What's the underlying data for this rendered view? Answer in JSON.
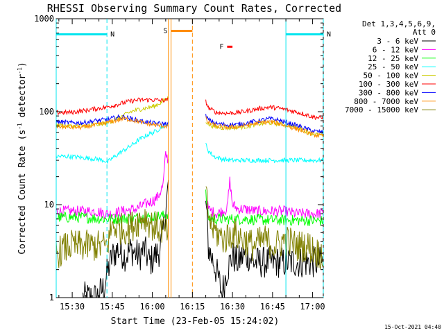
{
  "chart_data": {
    "type": "line",
    "title": "RHESSI Observing Summary Count Rates, Corrected",
    "xlabel": "Start Time (23-Feb-05 15:24:02)",
    "ylabel": "Corrected Count Rate (s",
    "ylabel_sup": "-1",
    "ylabel_mid": " detector",
    "ylabel_sup2": "-1",
    "ylabel_end": ")",
    "ylog": true,
    "ylim": [
      1,
      1000
    ],
    "xlim_minutes": [
      0,
      100
    ],
    "x_tick_labels": [
      "15:30",
      "15:45",
      "16:00",
      "16:15",
      "16:30",
      "16:45",
      "17:00"
    ],
    "x_tick_minutes": [
      6,
      21,
      36,
      51,
      66,
      81,
      96
    ],
    "y_tick_labels": [
      "1",
      "10",
      "100",
      "1000"
    ],
    "y_tick_values": [
      1,
      10,
      100,
      1000
    ],
    "legend_placement": "right",
    "legend_header": [
      "Det 1,3,4,5,6,9,",
      "Att 0"
    ],
    "timestamp": "15-Oct-2021 04:40",
    "gap_minutes": [
      42,
      56
    ],
    "markers": [
      {
        "label": "N",
        "color": "#00e5ee",
        "start": 0,
        "end": 19,
        "level": 680
      },
      {
        "label": "N",
        "color": "#00e5ee",
        "start": 86,
        "end": 100,
        "level": 680
      },
      {
        "label": "S",
        "color": "#ff8c00",
        "start": 43,
        "end": 51,
        "level": 740
      },
      {
        "label": "F",
        "color": "#ff0000",
        "start": 64,
        "end": 66,
        "level": 500
      }
    ],
    "vlines": [
      {
        "minute": 0,
        "color": "#00e5ee",
        "style": "solid"
      },
      {
        "minute": 19,
        "color": "#00e5ee",
        "style": "dashed"
      },
      {
        "minute": 86,
        "color": "#00e5ee",
        "style": "solid"
      },
      {
        "minute": 100,
        "color": "#00e5ee",
        "style": "dashed"
      },
      {
        "minute": 42,
        "color": "#ff8c00",
        "style": "solid"
      },
      {
        "minute": 43,
        "color": "#ff8c00",
        "style": "solid"
      },
      {
        "minute": 51,
        "color": "#ff8c00",
        "style": "dashed"
      }
    ],
    "series": [
      {
        "name": "3 - 6 keV",
        "color": "#000000",
        "x": [
          10,
          12,
          15,
          18,
          19,
          21,
          23,
          26,
          28,
          31,
          33,
          35,
          37,
          39,
          40,
          41,
          42,
          56,
          57,
          58,
          59,
          61,
          62,
          64,
          66,
          68,
          70,
          72,
          74,
          77,
          80,
          84,
          88,
          92,
          96,
          100
        ],
        "y": [
          1,
          1,
          1,
          1.3,
          1.8,
          2.8,
          3.3,
          2.8,
          3.3,
          2.8,
          3.3,
          2.4,
          2.8,
          3.3,
          5,
          9,
          16,
          11,
          3.5,
          2.8,
          2.4,
          1.5,
          1.1,
          2,
          2.8,
          2.4,
          2.8,
          2.8,
          2.4,
          2.4,
          2.4,
          2.4,
          2.4,
          2.4,
          2.4,
          2.4
        ]
      },
      {
        "name": "6 - 12 keV",
        "color": "#ff00ff",
        "x": [
          0,
          5,
          10,
          15,
          19,
          21,
          25,
          30,
          33,
          36,
          38,
          40,
          41,
          42,
          56,
          57,
          58,
          60,
          62,
          64,
          65,
          66,
          68,
          70,
          75,
          80,
          85,
          90,
          95,
          100
        ],
        "y": [
          8.5,
          8.5,
          8.5,
          8.5,
          8,
          8,
          8.5,
          9,
          10,
          11,
          12,
          16,
          35,
          30,
          12,
          9,
          8.5,
          8,
          8.5,
          9,
          18,
          10,
          9,
          9,
          8.5,
          8.5,
          8.5,
          8,
          8,
          8
        ]
      },
      {
        "name": "12 - 25 keV",
        "color": "#00ff00",
        "x": [
          0,
          10,
          19,
          21,
          30,
          36,
          40,
          42,
          56,
          57,
          60,
          65,
          70,
          80,
          90,
          100
        ],
        "y": [
          7.3,
          7.3,
          7,
          7,
          7.2,
          7.4,
          7.6,
          8,
          13,
          7.2,
          7,
          7,
          7,
          6.8,
          6.8,
          6.7
        ]
      },
      {
        "name": "25 - 50 keV",
        "color": "#00ffff",
        "x": [
          0,
          5,
          10,
          15,
          18,
          19,
          20,
          22,
          25,
          28,
          31,
          34,
          37,
          40,
          42,
          56,
          57,
          59,
          62,
          66,
          70,
          74,
          78,
          82,
          86,
          90,
          95,
          100
        ],
        "y": [
          33,
          33,
          32,
          31,
          30,
          28,
          30,
          33,
          38,
          43,
          50,
          56,
          61,
          70,
          75,
          45,
          38,
          33,
          31,
          30,
          30,
          30,
          30,
          30,
          30,
          30,
          30,
          30
        ]
      },
      {
        "name": "50 - 100 keV",
        "color": "#cccc00",
        "x": [
          0,
          5,
          10,
          15,
          19,
          22,
          25,
          28,
          31,
          34,
          37,
          40,
          42,
          56,
          57,
          60,
          64,
          68,
          72,
          76,
          80,
          84,
          88,
          92,
          96,
          100
        ],
        "y": [
          72,
          70,
          70,
          72,
          76,
          82,
          90,
          100,
          106,
          110,
          115,
          130,
          140,
          80,
          73,
          68,
          67,
          68,
          70,
          74,
          76,
          74,
          70,
          65,
          58,
          55
        ]
      },
      {
        "name": "100 - 300 keV",
        "color": "#ff0000",
        "x": [
          0,
          5,
          10,
          15,
          19,
          22,
          25,
          28,
          31,
          34,
          37,
          40,
          42,
          56,
          57,
          60,
          64,
          68,
          72,
          76,
          80,
          84,
          88,
          92,
          96,
          100
        ],
        "y": [
          98,
          98,
          102,
          108,
          112,
          118,
          124,
          130,
          134,
          134,
          134,
          132,
          134,
          130,
          110,
          98,
          96,
          98,
          102,
          108,
          112,
          108,
          102,
          96,
          88,
          85
        ]
      },
      {
        "name": "300 - 800 keV",
        "color": "#0000ff",
        "x": [
          0,
          5,
          10,
          15,
          19,
          22,
          25,
          28,
          31,
          34,
          37,
          40,
          42,
          56,
          57,
          60,
          64,
          68,
          72,
          76,
          80,
          84,
          88,
          92,
          96,
          100
        ],
        "y": [
          78,
          76,
          76,
          80,
          82,
          86,
          88,
          84,
          80,
          77,
          75,
          74,
          74,
          90,
          82,
          74,
          72,
          73,
          76,
          80,
          84,
          80,
          74,
          68,
          62,
          60
        ]
      },
      {
        "name": "800 - 7000 keV",
        "color": "#ff8c00",
        "x": [
          0,
          5,
          10,
          15,
          19,
          22,
          25,
          28,
          31,
          34,
          37,
          40,
          42,
          56,
          57,
          60,
          64,
          68,
          72,
          76,
          80,
          84,
          88,
          92,
          96,
          100
        ],
        "y": [
          70,
          68,
          68,
          72,
          76,
          80,
          84,
          82,
          78,
          74,
          72,
          70,
          70,
          84,
          76,
          70,
          68,
          69,
          72,
          76,
          78,
          74,
          68,
          63,
          57,
          54
        ]
      },
      {
        "name": "7000 - 15000 keV",
        "color": "#808000",
        "x": [
          0,
          5,
          10,
          15,
          19,
          21,
          24,
          27,
          30,
          33,
          36,
          39,
          42,
          56,
          57,
          58,
          60,
          63,
          66,
          70,
          74,
          78,
          82,
          86,
          90,
          94,
          98,
          100
        ],
        "y": [
          3,
          3.6,
          3.6,
          3.6,
          3.6,
          6,
          5.5,
          5.5,
          6.5,
          7.5,
          6,
          5.5,
          5,
          13,
          8,
          6,
          5,
          4.2,
          5,
          4.2,
          3.6,
          4.2,
          3.6,
          4.2,
          3.6,
          3.6,
          3,
          3
        ]
      }
    ]
  }
}
